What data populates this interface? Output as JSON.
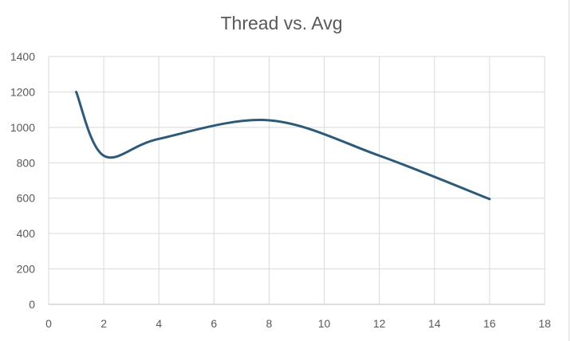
{
  "chart_data": {
    "type": "line",
    "title": "Thread vs. Avg",
    "xlabel": "",
    "ylabel": "",
    "xlim": [
      0,
      18
    ],
    "ylim": [
      0,
      1400
    ],
    "x_ticks": [
      0,
      2,
      4,
      6,
      8,
      10,
      12,
      14,
      16,
      18
    ],
    "y_ticks": [
      0,
      200,
      400,
      600,
      800,
      1000,
      1200,
      1400
    ],
    "grid": true,
    "legend": "none",
    "smooth": true,
    "series": [
      {
        "color": "#2e5a7a",
        "x": [
          1,
          2,
          4,
          8,
          12,
          16
        ],
        "y": [
          1200,
          840,
          935,
          1040,
          840,
          595
        ]
      }
    ]
  }
}
